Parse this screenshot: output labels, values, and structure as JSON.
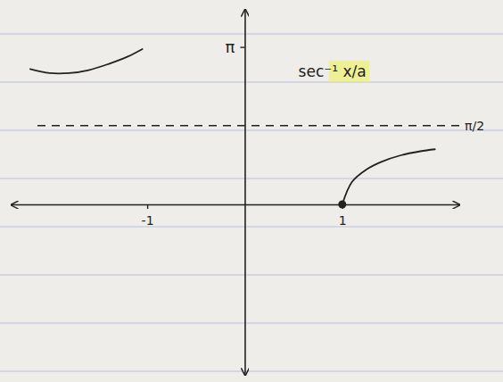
{
  "chart_data": {
    "type": "line",
    "annotations": [
      "sec⁻¹ x/a"
    ],
    "xlim": [
      -2.4,
      2.2
    ],
    "ylim": [
      -3.4,
      3.9
    ],
    "xticks": [
      -1,
      1
    ],
    "yticks": [
      {
        "value": 3.1416,
        "label": "π"
      }
    ],
    "reference_lines": [
      {
        "y": 1.5708,
        "label": "π/2",
        "line_style": "dashed"
      }
    ],
    "series": [
      {
        "x": [
          -2.2,
          -2.0,
          -1.8,
          -1.6,
          -1.4,
          -1.2,
          -1.05
        ],
        "values": [
          2.7,
          2.62,
          2.62,
          2.68,
          2.8,
          2.95,
          3.1
        ],
        "color": "#222222"
      },
      {
        "x": [
          1,
          1.1,
          1.25,
          1.4,
          1.6,
          1.8,
          1.95
        ],
        "values": [
          0,
          0.45,
          0.7,
          0.85,
          0.98,
          1.06,
          1.1
        ],
        "color": "#222222",
        "marker": "start-dot"
      }
    ]
  }
}
